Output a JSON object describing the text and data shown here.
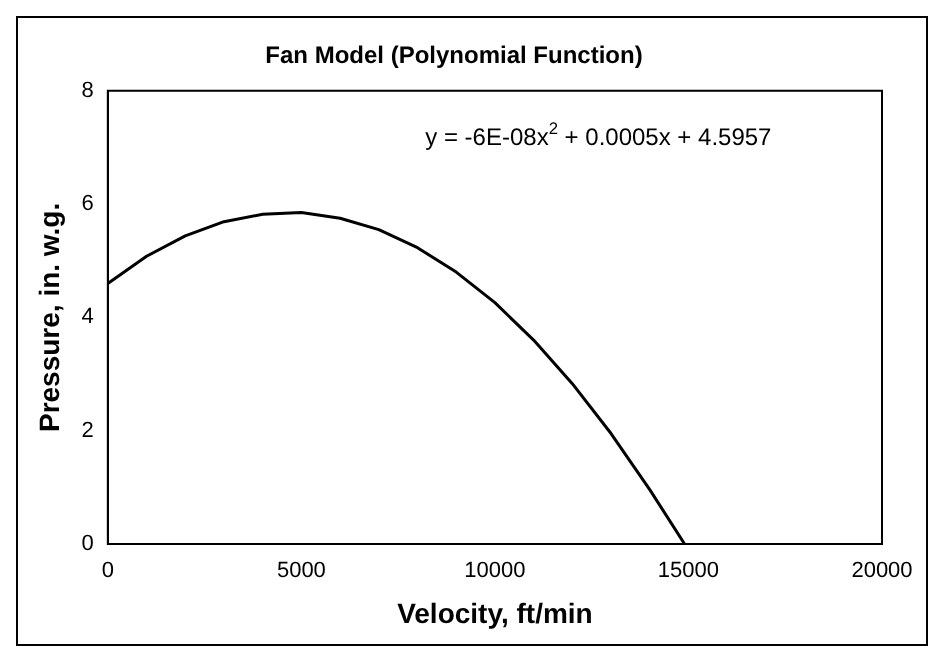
{
  "chart_data": {
    "type": "line",
    "title": "Fan Model (Polynomial Function)",
    "xlabel": "Velocity, ft/min",
    "ylabel": "Pressure, in. w.g.",
    "annotations": [
      "y = -6E-08x$^{2}$ + 0.0005x + 4.5957"
    ],
    "x": [
      0,
      1000,
      2000,
      3000,
      4000,
      5000,
      6000,
      7000,
      8000,
      9000,
      10000,
      11000,
      12000,
      13000,
      14000,
      14900
    ],
    "series": [
      {
        "color": "#000000",
        "values": [
          4.6,
          5.08,
          5.44,
          5.69,
          5.82,
          5.85,
          5.75,
          5.55,
          5.23,
          4.8,
          4.26,
          3.6,
          2.83,
          1.95,
          0.96,
          0
        ]
      }
    ],
    "xlim": [
      0,
      20000
    ],
    "xticks": [
      0,
      5000,
      10000,
      15000,
      20000
    ],
    "ylim": [
      0,
      8
    ],
    "yticks": [
      0,
      2,
      4,
      6,
      8
    ],
    "grid": false,
    "legend": false,
    "marker": "none",
    "line_style": "solid"
  }
}
